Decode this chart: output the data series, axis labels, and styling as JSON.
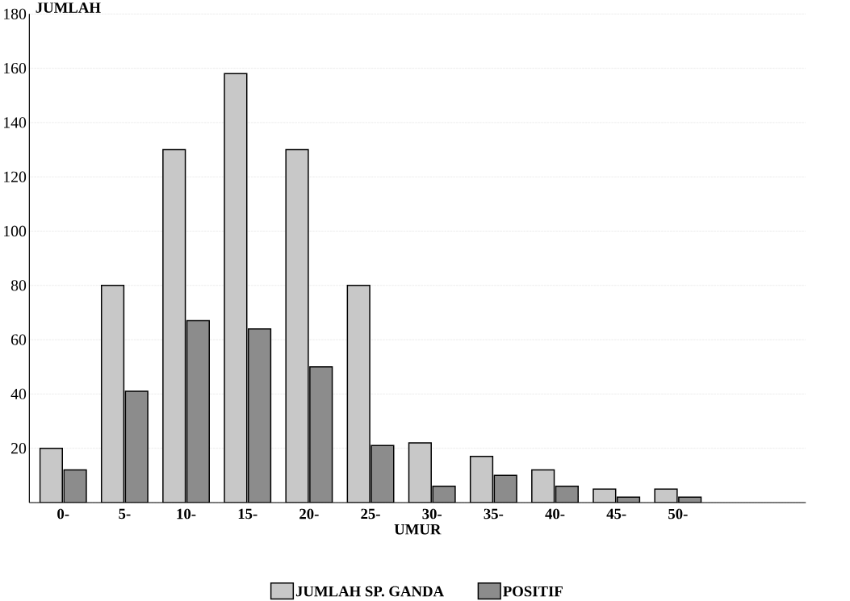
{
  "chart_data": {
    "type": "bar",
    "xlabel": "UMUR",
    "ylabel": "JUMLAH",
    "categories": [
      "0-",
      "5-",
      "10-",
      "15-",
      "20-",
      "25-",
      "30-",
      "35-",
      "40-",
      "45-",
      "50-"
    ],
    "series": [
      {
        "name": "JUMLAH SP. GANDA",
        "color": "#c8c8c8",
        "values": [
          20,
          80,
          130,
          158,
          130,
          80,
          22,
          17,
          12,
          5,
          5
        ]
      },
      {
        "name": "POSITIF",
        "color": "#8c8c8c",
        "values": [
          12,
          41,
          67,
          64,
          50,
          21,
          6,
          10,
          6,
          2,
          2
        ]
      }
    ],
    "ylim": [
      0,
      180
    ],
    "yticks": [
      {
        "value": 0,
        "label": null
      },
      20,
      40,
      60,
      80,
      100,
      120,
      140,
      160,
      180
    ],
    "grid": "y",
    "legend": "bottom"
  }
}
